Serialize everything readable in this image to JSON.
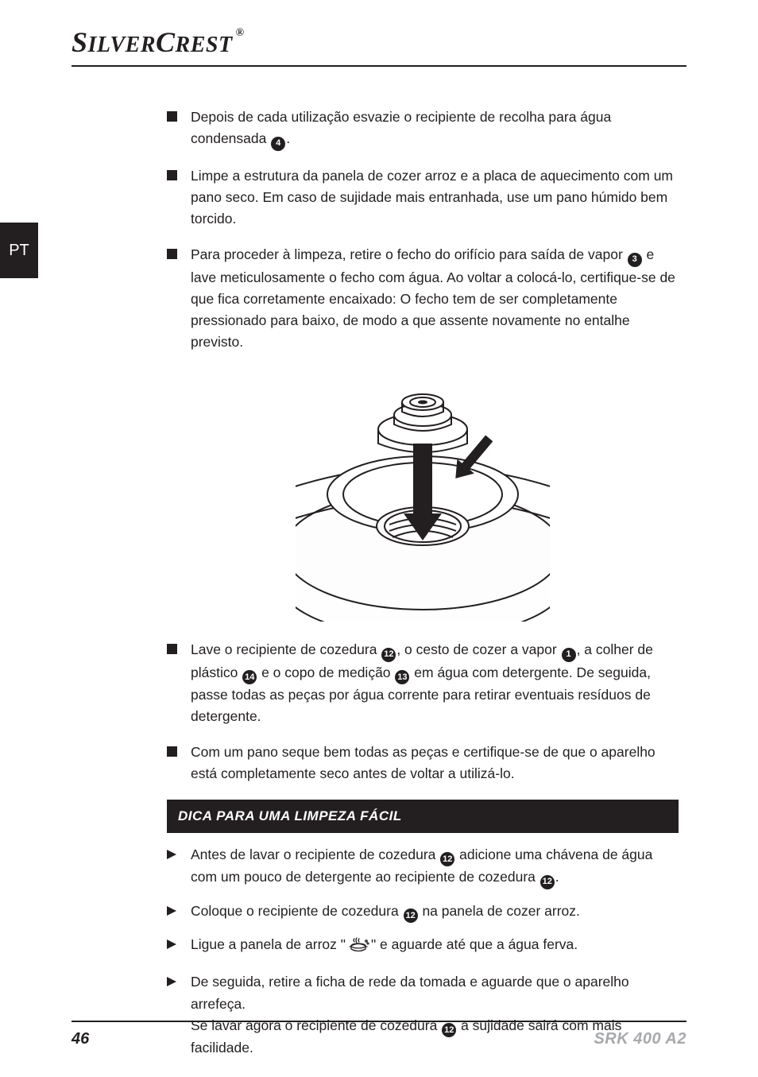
{
  "brand": {
    "name_1": "S",
    "name_2": "ILVER",
    "name_3": "C",
    "name_4": "REST",
    "reg": "®"
  },
  "lang_tab": "PT",
  "bullets_top": [
    {
      "pre": "Depois de cada utilização esvazie o recipiente de recolha para água condensada ",
      "refs": [
        "4"
      ],
      "post": "."
    },
    {
      "pre": "Limpe a estrutura da panela de cozer arroz e a placa de aquecimento com um pano seco. Em caso de sujidade mais entranhada, use um pano húmido bem torcido.",
      "refs": [],
      "post": ""
    },
    {
      "pre": "Para proceder à limpeza, retire o fecho do orifício para saída de vapor ",
      "refs": [
        "3"
      ],
      "post": " e lave meticulosamente o fecho com água. Ao voltar a colocá-lo, certifique-se de que fica corretamente encaixado: O fecho tem de ser completamente pressionado para baixo, de modo a que assente novamente no entalhe previsto."
    }
  ],
  "bullets_mid": [
    {
      "segments": [
        {
          "t": "Lave o recipiente de cozedura "
        },
        {
          "r": "12"
        },
        {
          "t": ", o cesto de cozer a vapor "
        },
        {
          "r": "1"
        },
        {
          "t": ", a colher de plástico "
        },
        {
          "r": "14"
        },
        {
          "t": " e o copo de medição "
        },
        {
          "r": "13"
        },
        {
          "t": " em água com detergente. De seguida, passe todas as peças por água corrente para retirar eventuais resíduos de detergente."
        }
      ]
    },
    {
      "segments": [
        {
          "t": "Com um pano seque bem todas as peças e certifique-se de que o aparelho está completamente seco antes de voltar a utilizá-lo."
        }
      ]
    }
  ],
  "tip_title": "DICA PARA UMA LIMPEZA FÁCIL",
  "tips": [
    {
      "segments": [
        {
          "t": "Antes de lavar o recipiente de cozedura "
        },
        {
          "r": "12"
        },
        {
          "t": " adicione uma chávena de água com um pouco de detergente ao recipiente de cozedura "
        },
        {
          "r": "12"
        },
        {
          "t": "."
        }
      ]
    },
    {
      "segments": [
        {
          "t": "Coloque o recipiente de cozedura "
        },
        {
          "r": "12"
        },
        {
          "t": " na panela de cozer arroz."
        }
      ]
    },
    {
      "segments": [
        {
          "t": "Ligue a panela de arroz \""
        },
        {
          "icon": "cook"
        },
        {
          "t": "\" e aguarde até que a água ferva."
        }
      ]
    },
    {
      "segments": [
        {
          "t": "De seguida, retire a ficha de rede da tomada e aguarde que o aparelho arrefeça."
        },
        {
          "br": true
        },
        {
          "t": "Se lavar agora o recipiente de cozedura "
        },
        {
          "r": "12"
        },
        {
          "t": " a sujidade sairá com mais facilidade."
        }
      ]
    }
  ],
  "footer": {
    "page": "46",
    "model": "SRK 400 A2"
  },
  "colors": {
    "text": "#231f20",
    "muted": "#a7a9ac",
    "bg": "#ffffff"
  }
}
